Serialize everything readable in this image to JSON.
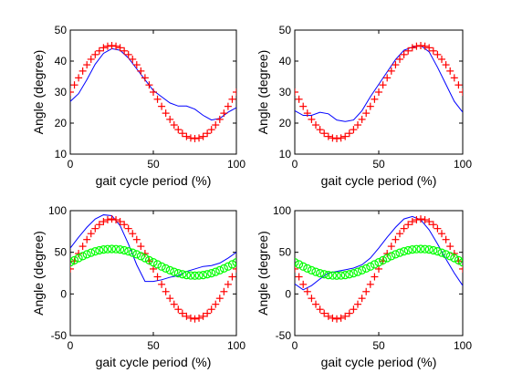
{
  "figure": {
    "background": "#ffffff"
  },
  "chart_data": [
    {
      "type": "line",
      "xlabel": "gait cycle period (%)",
      "ylabel": "Angle (degree)",
      "xlim": [
        0,
        100
      ],
      "ylim": [
        10,
        50
      ],
      "xticks": [
        0,
        50,
        100
      ],
      "yticks": [
        10,
        20,
        30,
        40,
        50
      ],
      "grid": false,
      "series": [
        {
          "style": "line",
          "color": "#0000ff",
          "x": [
            0,
            5,
            10,
            15,
            20,
            25,
            30,
            35,
            40,
            45,
            50,
            55,
            60,
            65,
            70,
            75,
            80,
            85,
            90,
            95,
            100
          ],
          "y": [
            27,
            29.5,
            34,
            39,
            42.5,
            44,
            43.5,
            41,
            37.5,
            34,
            30.5,
            28.5,
            26.5,
            25.5,
            25.5,
            24.5,
            22.5,
            21,
            21.5,
            23.5,
            25
          ]
        },
        {
          "style": "markers",
          "marker": "+",
          "color": "#ff0000",
          "x": [
            0,
            2.5,
            5,
            7.5,
            10,
            12.5,
            15,
            17.5,
            20,
            22.5,
            25,
            27.5,
            30,
            32.5,
            35,
            37.5,
            40,
            42.5,
            45,
            47.5,
            50,
            52.5,
            55,
            57.5,
            60,
            62.5,
            65,
            67.5,
            70,
            72.5,
            75,
            77.5,
            80,
            82.5,
            85,
            87.5,
            90,
            92.5,
            95,
            97.5,
            100
          ],
          "y": [
            30,
            32.3,
            34.6,
            36.8,
            38.8,
            40.6,
            42.1,
            43.3,
            44.3,
            44.8,
            45,
            44.8,
            44.3,
            43.3,
            42.1,
            40.6,
            38.8,
            36.8,
            34.6,
            32.3,
            30,
            27.7,
            25.4,
            23.2,
            21.2,
            19.4,
            17.9,
            16.7,
            15.7,
            15.2,
            15,
            15.2,
            15.7,
            16.7,
            17.9,
            19.4,
            21.2,
            23.2,
            25.4,
            27.7,
            30
          ]
        }
      ]
    },
    {
      "type": "line",
      "xlabel": "gait cycle period (%)",
      "ylabel": "Angle (degree)",
      "xlim": [
        0,
        100
      ],
      "ylim": [
        10,
        50
      ],
      "xticks": [
        0,
        50,
        100
      ],
      "yticks": [
        10,
        20,
        30,
        40,
        50
      ],
      "grid": false,
      "series": [
        {
          "style": "line",
          "color": "#0000ff",
          "x": [
            0,
            5,
            10,
            15,
            20,
            25,
            30,
            35,
            40,
            45,
            50,
            55,
            60,
            65,
            70,
            75,
            80,
            85,
            90,
            95,
            100
          ],
          "y": [
            24,
            22.5,
            22.5,
            23.5,
            23,
            21,
            20.5,
            21,
            24,
            28.5,
            32.5,
            36.5,
            40.5,
            43.5,
            44.5,
            45,
            43,
            38,
            32.5,
            27,
            23.5
          ]
        },
        {
          "style": "markers",
          "marker": "+",
          "color": "#ff0000",
          "x": [
            0,
            2.5,
            5,
            7.5,
            10,
            12.5,
            15,
            17.5,
            20,
            22.5,
            25,
            27.5,
            30,
            32.5,
            35,
            37.5,
            40,
            42.5,
            45,
            47.5,
            50,
            52.5,
            55,
            57.5,
            60,
            62.5,
            65,
            67.5,
            70,
            72.5,
            75,
            77.5,
            80,
            82.5,
            85,
            87.5,
            90,
            92.5,
            95,
            97.5,
            100
          ],
          "y": [
            30,
            27.7,
            25.4,
            23.2,
            21.2,
            19.4,
            17.9,
            16.7,
            15.7,
            15.2,
            15,
            15.2,
            15.7,
            16.7,
            17.9,
            19.4,
            21.2,
            23.2,
            25.4,
            27.7,
            30,
            32.3,
            34.6,
            36.8,
            38.8,
            40.6,
            42.1,
            43.3,
            44.3,
            44.8,
            45,
            44.8,
            44.3,
            43.3,
            42.1,
            40.6,
            38.8,
            36.8,
            34.6,
            32.3,
            30
          ]
        }
      ]
    },
    {
      "type": "line",
      "xlabel": "gait cycle period (%)",
      "ylabel": "Angle (degree)",
      "xlim": [
        0,
        100
      ],
      "ylim": [
        -50,
        100
      ],
      "xticks": [
        0,
        50,
        100
      ],
      "yticks": [
        -50,
        0,
        50,
        100
      ],
      "grid": false,
      "series": [
        {
          "style": "line",
          "color": "#0000ff",
          "x": [
            0,
            5,
            10,
            15,
            20,
            25,
            30,
            35,
            40,
            45,
            50,
            55,
            60,
            65,
            70,
            75,
            80,
            85,
            90,
            95,
            100
          ],
          "y": [
            55,
            68,
            80,
            90,
            95,
            94,
            82,
            60,
            35,
            15,
            15,
            17,
            20,
            22,
            27,
            30,
            33,
            34,
            37,
            43,
            50
          ]
        },
        {
          "style": "markers",
          "marker": "+",
          "color": "#ff0000",
          "x": [
            0,
            2.5,
            5,
            7.5,
            10,
            12.5,
            15,
            17.5,
            20,
            22.5,
            25,
            27.5,
            30,
            32.5,
            35,
            37.5,
            40,
            42.5,
            45,
            47.5,
            50,
            52.5,
            55,
            57.5,
            60,
            62.5,
            65,
            67.5,
            70,
            72.5,
            75,
            77.5,
            80,
            82.5,
            85,
            87.5,
            90,
            92.5,
            95,
            97.5,
            100
          ],
          "y": [
            30,
            39.4,
            48.5,
            57.2,
            65.3,
            72.4,
            78.5,
            83.3,
            86.8,
            89,
            90,
            89,
            86.8,
            83.3,
            78.5,
            72.4,
            65.3,
            57.2,
            48.5,
            39.4,
            30,
            20.6,
            11.5,
            2.8,
            -5.3,
            -12.4,
            -18.5,
            -23.3,
            -26.8,
            -29,
            -30,
            -29,
            -26.8,
            -23.3,
            -18.5,
            -12.4,
            -5.3,
            2.8,
            11.5,
            20.6,
            30
          ]
        },
        {
          "style": "markers",
          "marker": "o",
          "color": "#00ff00",
          "x": [
            0,
            2.5,
            5,
            7.5,
            10,
            12.5,
            15,
            17.5,
            20,
            22.5,
            25,
            27.5,
            30,
            32.5,
            35,
            37.5,
            40,
            42.5,
            45,
            47.5,
            50,
            52.5,
            55,
            57.5,
            60,
            62.5,
            65,
            67.5,
            70,
            72.5,
            75,
            77.5,
            80,
            82.5,
            85,
            87.5,
            90,
            92.5,
            95,
            97.5,
            100
          ],
          "y": [
            38,
            40.5,
            43.1,
            45.4,
            47.6,
            49.5,
            51.1,
            52.4,
            53.3,
            53.8,
            54,
            53.8,
            53.3,
            52.4,
            51.1,
            49.5,
            47.6,
            45.4,
            43.1,
            40.5,
            38,
            35.5,
            32.9,
            30.6,
            28.4,
            26.5,
            24.9,
            23.6,
            22.7,
            22.2,
            22,
            22.2,
            22.7,
            23.6,
            24.9,
            26.5,
            28.4,
            30.6,
            32.9,
            35.5,
            38
          ]
        }
      ]
    },
    {
      "type": "line",
      "xlabel": "gait cycle period (%)",
      "ylabel": "Angle (degree)",
      "xlim": [
        0,
        100
      ],
      "ylim": [
        -50,
        100
      ],
      "xticks": [
        0,
        50,
        100
      ],
      "yticks": [
        -50,
        0,
        50,
        100
      ],
      "grid": false,
      "series": [
        {
          "style": "line",
          "color": "#0000ff",
          "x": [
            0,
            5,
            10,
            15,
            20,
            25,
            30,
            35,
            40,
            45,
            50,
            55,
            60,
            65,
            70,
            75,
            80,
            85,
            90,
            95,
            100
          ],
          "y": [
            12,
            5,
            10,
            18,
            25,
            27,
            29,
            31,
            35,
            43,
            55,
            68,
            80,
            90,
            93,
            89,
            77,
            60,
            42,
            25,
            10
          ]
        },
        {
          "style": "markers",
          "marker": "+",
          "color": "#ff0000",
          "x": [
            0,
            2.5,
            5,
            7.5,
            10,
            12.5,
            15,
            17.5,
            20,
            22.5,
            25,
            27.5,
            30,
            32.5,
            35,
            37.5,
            40,
            42.5,
            45,
            47.5,
            50,
            52.5,
            55,
            57.5,
            60,
            62.5,
            65,
            67.5,
            70,
            72.5,
            75,
            77.5,
            80,
            82.5,
            85,
            87.5,
            90,
            92.5,
            95,
            97.5,
            100
          ],
          "y": [
            30,
            20.6,
            11.5,
            2.8,
            -5.3,
            -12.4,
            -18.5,
            -23.3,
            -26.8,
            -29,
            -30,
            -29,
            -26.8,
            -23.3,
            -18.5,
            -12.4,
            -5.3,
            2.8,
            11.5,
            20.6,
            30,
            39.4,
            48.5,
            57.2,
            65.3,
            72.4,
            78.5,
            83.3,
            86.8,
            89,
            90,
            89,
            86.8,
            83.3,
            78.5,
            72.4,
            65.3,
            57.2,
            48.5,
            39.4,
            30
          ]
        },
        {
          "style": "markers",
          "marker": "o",
          "color": "#00ff00",
          "x": [
            0,
            2.5,
            5,
            7.5,
            10,
            12.5,
            15,
            17.5,
            20,
            22.5,
            25,
            27.5,
            30,
            32.5,
            35,
            37.5,
            40,
            42.5,
            45,
            47.5,
            50,
            52.5,
            55,
            57.5,
            60,
            62.5,
            65,
            67.5,
            70,
            72.5,
            75,
            77.5,
            80,
            82.5,
            85,
            87.5,
            90,
            92.5,
            95,
            97.5,
            100
          ],
          "y": [
            38,
            35.5,
            32.9,
            30.6,
            28.4,
            26.5,
            24.9,
            23.6,
            22.7,
            22.2,
            22,
            22.2,
            22.7,
            23.6,
            24.9,
            26.5,
            28.4,
            30.6,
            32.9,
            35.5,
            38,
            40.5,
            43.1,
            45.4,
            47.6,
            49.5,
            51.1,
            52.4,
            53.3,
            53.8,
            54,
            53.8,
            53.3,
            52.4,
            51.1,
            49.5,
            47.6,
            45.4,
            43.1,
            40.5,
            38
          ]
        }
      ]
    }
  ]
}
